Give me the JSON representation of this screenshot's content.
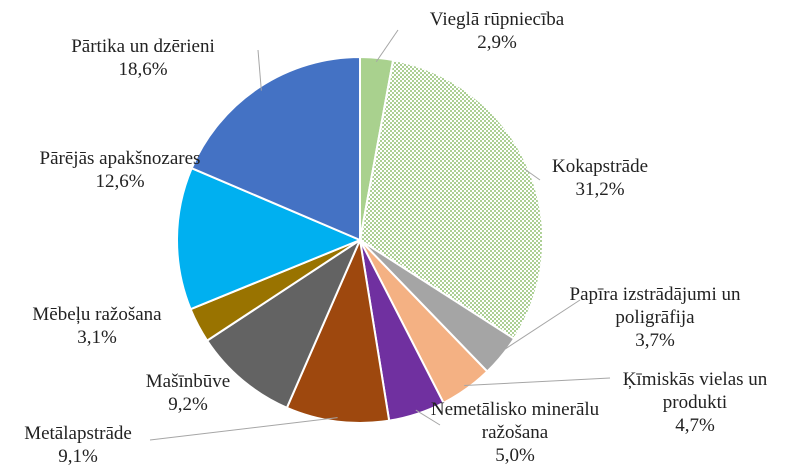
{
  "chart_data": {
    "type": "pie",
    "categories": [
      "Vieglā rūpniecība",
      "Kokapstrāde",
      "Papīra izstrādājumi un poligrāfija",
      "Ķīmiskās vielas un produkti",
      "Nemetālisko minerālu ražošana",
      "Metālapstrāde",
      "Mašīnbūve",
      "Mēbeļu ražošana",
      "Pārējās apakšnozares",
      "Pārtika un dzērieni"
    ],
    "values": [
      2.9,
      31.2,
      3.7,
      4.7,
      5.0,
      9.1,
      9.2,
      3.1,
      12.6,
      18.6
    ],
    "value_labels": [
      "2,9%",
      "31,2%",
      "3,7%",
      "4,7%",
      "5,0%",
      "9,1%",
      "9,2%",
      "3,1%",
      "12,6%",
      "18,6%"
    ],
    "colors": [
      "#a9d18e",
      "#70ad47",
      "#a5a5a5",
      "#f4b183",
      "#7030a0",
      "#9e480e",
      "#636363",
      "#997300",
      "#00b0f0",
      "#4472c4"
    ],
    "patterns": [
      null,
      "dots",
      null,
      null,
      null,
      null,
      null,
      null,
      null,
      null
    ]
  }
}
